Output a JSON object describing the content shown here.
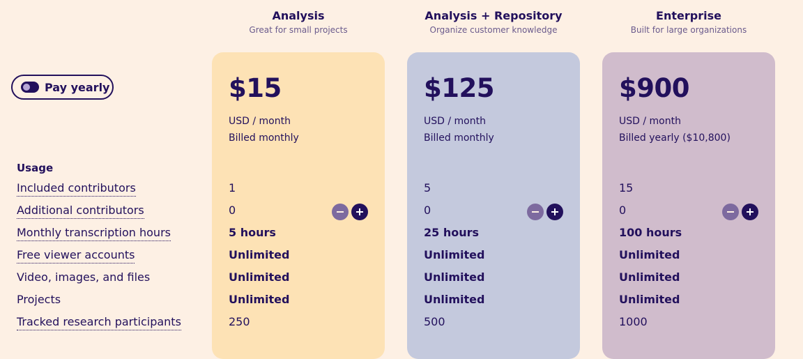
{
  "toggle": {
    "label": "Pay yearly"
  },
  "usage": {
    "heading": "Usage",
    "rows": [
      "Included contributors",
      "Additional contributors",
      "Monthly transcription hours",
      "Free viewer accounts",
      "Video, images, and files",
      "Projects",
      "Tracked research participants"
    ]
  },
  "plans": [
    {
      "title": "Analysis",
      "subtitle": "Great for small projects",
      "price": "$15",
      "unit": "USD / month",
      "billing": "Billed monthly",
      "color": "#fde2b5",
      "values": [
        "1",
        "0",
        "5 hours",
        "Unlimited",
        "Unlimited",
        "Unlimited",
        "250"
      ]
    },
    {
      "title": "Analysis + Repository",
      "subtitle": "Organize customer knowledge",
      "price": "$125",
      "unit": "USD / month",
      "billing": "Billed monthly",
      "color": "#c4c9dd",
      "values": [
        "5",
        "0",
        "25 hours",
        "Unlimited",
        "Unlimited",
        "Unlimited",
        "500"
      ]
    },
    {
      "title": "Enterprise",
      "subtitle": "Built for large organizations",
      "price": "$900",
      "unit": "USD / month",
      "billing": "Billed yearly ($10,800)",
      "color": "#d0bccc",
      "values": [
        "15",
        "0",
        "100 hours",
        "Unlimited",
        "Unlimited",
        "Unlimited",
        "1000"
      ]
    }
  ],
  "stepper_icons": {
    "minus": "minus-icon",
    "plus": "plus-icon"
  },
  "colors": {
    "background": "#fdf0e4",
    "text": "#22105c",
    "minus_button": "#7d6a9f",
    "plus_button": "#22105c"
  }
}
